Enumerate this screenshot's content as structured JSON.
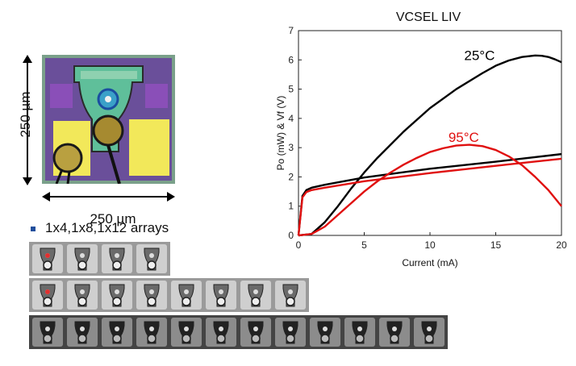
{
  "figure": {
    "dimension_vertical": "250 µm",
    "dimension_horizontal": "250 µm",
    "arrays_label": "1x4,1x8,1x12 arrays",
    "array_strips": [
      {
        "count": 4,
        "marked_index": 0
      },
      {
        "count": 8,
        "marked_index": 0
      },
      {
        "count": 12,
        "marked_index": -1
      }
    ],
    "colors": {
      "marker": "#e03030",
      "bullet": "#1f4e9c"
    }
  },
  "chart_data": {
    "type": "line",
    "title": "VCSEL LIV",
    "xlabel": "Current (mA)",
    "ylabel": "Po (mW) & Vf (V)",
    "xlim": [
      0,
      20
    ],
    "ylim": [
      0,
      7
    ],
    "xticks": [
      0,
      5,
      10,
      15,
      20
    ],
    "yticks": [
      0,
      1,
      2,
      3,
      4,
      5,
      6,
      7
    ],
    "grid": false,
    "annotations": [
      {
        "text": "25°C",
        "x": 12.6,
        "y": 6.0,
        "color": "#000000"
      },
      {
        "text": "95°C",
        "x": 11.4,
        "y": 3.2,
        "color": "#e01010"
      }
    ],
    "series": [
      {
        "color": "#000000",
        "x": [
          0,
          1,
          2,
          3,
          4,
          5,
          6,
          8,
          10,
          12,
          14,
          15,
          16,
          17,
          18,
          18.5,
          19,
          19.5,
          20
        ],
        "y": [
          0,
          0.05,
          0.45,
          1.0,
          1.6,
          2.15,
          2.65,
          3.55,
          4.35,
          5.0,
          5.55,
          5.8,
          5.98,
          6.1,
          6.15,
          6.14,
          6.1,
          6.02,
          5.92
        ]
      },
      {
        "color": "#000000",
        "x": [
          0,
          0.3,
          0.6,
          1,
          2,
          5,
          10,
          15,
          20
        ],
        "y": [
          0,
          1.35,
          1.55,
          1.63,
          1.73,
          1.98,
          2.28,
          2.52,
          2.78
        ]
      },
      {
        "color": "#e01010",
        "x": [
          0,
          1,
          2,
          3,
          4,
          5,
          6,
          7,
          8,
          9,
          10,
          11,
          12,
          13,
          14,
          15,
          16,
          17,
          18,
          19,
          20
        ],
        "y": [
          0,
          0.05,
          0.3,
          0.7,
          1.1,
          1.5,
          1.85,
          2.15,
          2.42,
          2.65,
          2.85,
          2.98,
          3.07,
          3.1,
          3.05,
          2.92,
          2.7,
          2.4,
          2.0,
          1.55,
          1.0
        ]
      },
      {
        "color": "#e01010",
        "x": [
          0,
          0.3,
          0.6,
          1,
          2,
          5,
          10,
          15,
          20
        ],
        "y": [
          0,
          1.3,
          1.48,
          1.55,
          1.63,
          1.85,
          2.13,
          2.38,
          2.62
        ]
      }
    ]
  }
}
